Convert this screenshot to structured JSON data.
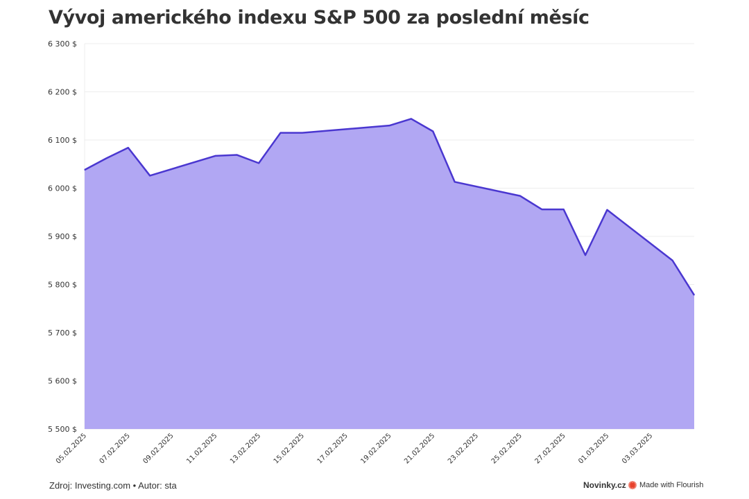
{
  "footer": {
    "source": "Zdroj: Investing.com • Autor: sta",
    "publisher": "Novinky.cz",
    "made_with": "Made with Flourish"
  },
  "colors": {
    "line": "#4a37d0",
    "area": "#b1a7f3",
    "grid": "#ececec",
    "flourish": "#e8412b"
  },
  "chart_data": {
    "type": "area",
    "title": "Vývoj amerického indexu S&P 500 za poslední měsíc",
    "xlabel": "",
    "ylabel": "",
    "ylim": [
      5500,
      6300
    ],
    "yticks": [
      5500,
      5600,
      5700,
      5800,
      5900,
      6000,
      6100,
      6200,
      6300
    ],
    "ytick_labels": [
      "5 500 $",
      "5 600 $",
      "5 700 $",
      "5 800 $",
      "5 900 $",
      "6 000 $",
      "6 100 $",
      "6 200 $",
      "6 300 $"
    ],
    "xlim": [
      "2025-02-05",
      "2025-03-05"
    ],
    "xtick_labels": [
      "05.02.2025",
      "07.02.2025",
      "09.02.2025",
      "11.02.2025",
      "13.02.2025",
      "15.02.2025",
      "17.02.2025",
      "19.02.2025",
      "21.02.2025",
      "23.02.2025",
      "25.02.2025",
      "27.02.2025",
      "01.03.2025",
      "03.03.2025"
    ],
    "grid": true,
    "series": [
      {
        "points": [
          {
            "x": "2025-02-05",
            "y": 6038
          },
          {
            "x": "2025-02-06",
            "y": 6062
          },
          {
            "x": "2025-02-07",
            "y": 6084
          },
          {
            "x": "2025-02-08",
            "y": 6026
          },
          {
            "x": "2025-02-11",
            "y": 6067
          },
          {
            "x": "2025-02-12",
            "y": 6069
          },
          {
            "x": "2025-02-13",
            "y": 6052
          },
          {
            "x": "2025-02-14",
            "y": 6115
          },
          {
            "x": "2025-02-15",
            "y": 6115
          },
          {
            "x": "2025-02-19",
            "y": 6130
          },
          {
            "x": "2025-02-20",
            "y": 6144
          },
          {
            "x": "2025-02-21",
            "y": 6118
          },
          {
            "x": "2025-02-22",
            "y": 6013
          },
          {
            "x": "2025-02-25",
            "y": 5984
          },
          {
            "x": "2025-02-26",
            "y": 5956
          },
          {
            "x": "2025-02-27",
            "y": 5956
          },
          {
            "x": "2025-02-28",
            "y": 5861
          },
          {
            "x": "2025-03-01",
            "y": 5955
          },
          {
            "x": "2025-03-04",
            "y": 5850
          },
          {
            "x": "2025-03-05",
            "y": 5778
          }
        ]
      }
    ]
  }
}
